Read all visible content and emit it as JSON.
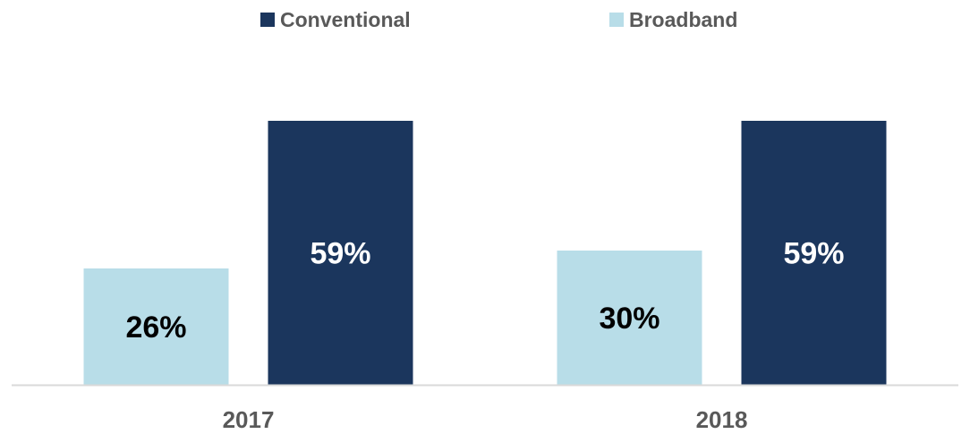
{
  "chart_data": {
    "type": "bar",
    "categories": [
      "2017",
      "2018"
    ],
    "series": [
      {
        "name": "Broadband",
        "values": [
          26,
          30
        ],
        "labels": [
          "26%",
          "30%"
        ],
        "color": "#b8dde8",
        "label_color": "#000000"
      },
      {
        "name": "Conventional",
        "values": [
          59,
          59
        ],
        "labels": [
          "59%",
          "59%"
        ],
        "color": "#1b365d",
        "label_color": "#ffffff"
      }
    ],
    "legend_order": [
      "Conventional",
      "Broadband"
    ],
    "legend_position": "top",
    "value_unit": "%",
    "ylim": [
      0,
      70
    ],
    "grid": false,
    "title": "",
    "xlabel": "",
    "ylabel": ""
  },
  "legend": {
    "conventional_label": "Conventional",
    "conventional_color": "#1b365d",
    "broadband_label": "Broadband",
    "broadband_color": "#b8dde8"
  }
}
